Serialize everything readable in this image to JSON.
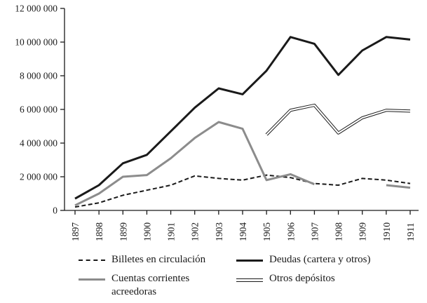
{
  "chart_data": {
    "type": "line",
    "title": "",
    "xlabel": "",
    "ylabel": "",
    "grid": false,
    "legend_position": "bottom",
    "ylim": [
      0,
      12000000
    ],
    "ytick_step": 2000000,
    "ytick_labels": [
      "0",
      "2 000 000",
      "4 000 000",
      "6 000 000",
      "8 000 000",
      "10 000 000",
      "12 000 000"
    ],
    "categories": [
      "1897",
      "1898",
      "1899",
      "1900",
      "1901",
      "1902",
      "1903",
      "1904",
      "1905",
      "1906",
      "1907",
      "1908",
      "1909",
      "1910",
      "1911"
    ],
    "series": [
      {
        "name": "Billetes en circulación",
        "style": "dashed-black",
        "values": [
          200000,
          450000,
          900000,
          1200000,
          1500000,
          2050000,
          1900000,
          1800000,
          2100000,
          1950000,
          1600000,
          1500000,
          1900000,
          1800000,
          1600000
        ]
      },
      {
        "name": "Deudas (cartera y otros)",
        "style": "solid-black-thick",
        "values": [
          700000,
          1500000,
          2800000,
          3300000,
          4700000,
          6100000,
          7250000,
          6900000,
          8300000,
          10300000,
          9900000,
          8050000,
          9500000,
          10300000,
          10150000
        ]
      },
      {
        "name": "Cuentas corrientes acreedoras",
        "style": "solid-gray-thick",
        "values": [
          300000,
          1000000,
          2000000,
          2100000,
          3100000,
          4300000,
          5250000,
          4850000,
          1800000,
          2150000,
          1550000,
          null,
          null,
          1500000,
          1350000
        ]
      },
      {
        "name": "Otros depósitos",
        "style": "double-line",
        "values": [
          null,
          null,
          null,
          null,
          null,
          null,
          null,
          null,
          4500000,
          5950000,
          6250000,
          4600000,
          5500000,
          5950000,
          5900000
        ]
      }
    ]
  },
  "colors": {
    "black": "#1a1a1a",
    "gray": "#8c8c8c",
    "background": "#ffffff"
  },
  "legend": {
    "items": [
      {
        "label": "Billetes en circulación",
        "style": "dashed-black"
      },
      {
        "label": "Deudas (cartera y otros)",
        "style": "solid-black-thick"
      },
      {
        "label": "Cuentas corrientes\nacreedoras",
        "style": "solid-gray-thick"
      },
      {
        "label": "Otros depósitos",
        "style": "double-line"
      }
    ]
  }
}
